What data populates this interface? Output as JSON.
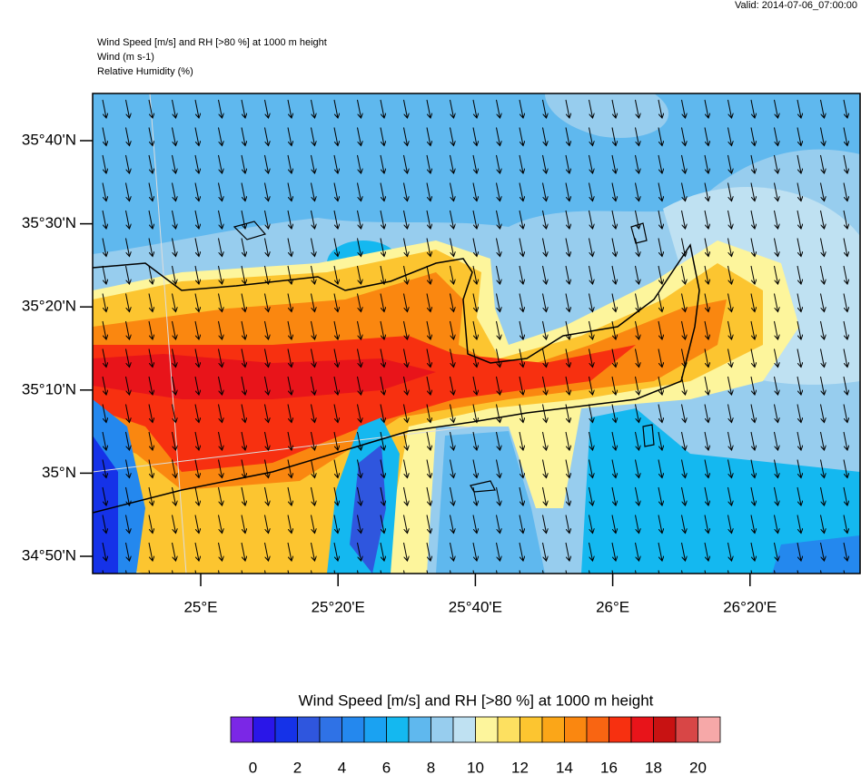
{
  "header": {
    "valid": "Valid: 2014-07-06_07:00:00",
    "lines": [
      "Wind Speed [m/s] and RH [>80 %] at 1000 m height",
      "Wind   (m s-1)",
      "Relative Humidity   (%)"
    ]
  },
  "map": {
    "lat_labels": [
      "35°40'N",
      "35°30'N",
      "35°20'N",
      "35°10'N",
      "35°N",
      "34°50'N"
    ],
    "lon_labels": [
      "25°E",
      "25°20'E",
      "25°40'E",
      "26°E",
      "26°20'E"
    ]
  },
  "colorbar": {
    "title": "Wind Speed [m/s] and RH [>80 %] at 1000 m height",
    "colors": [
      "#7b27e6",
      "#2a16e8",
      "#1532e8",
      "#2f56de",
      "#2f72e6",
      "#2488ee",
      "#1aa2f2",
      "#14b8f0",
      "#5fb8ee",
      "#97cdee",
      "#bfe1f2",
      "#fdf59c",
      "#fde060",
      "#fcc530",
      "#fba618",
      "#fa8710",
      "#f96512",
      "#f73010",
      "#e8141a",
      "#c81212",
      "#d84646",
      "#f6a8a8"
    ],
    "ticks": [
      0,
      2,
      4,
      6,
      8,
      10,
      12,
      14,
      16,
      18,
      20
    ]
  }
}
